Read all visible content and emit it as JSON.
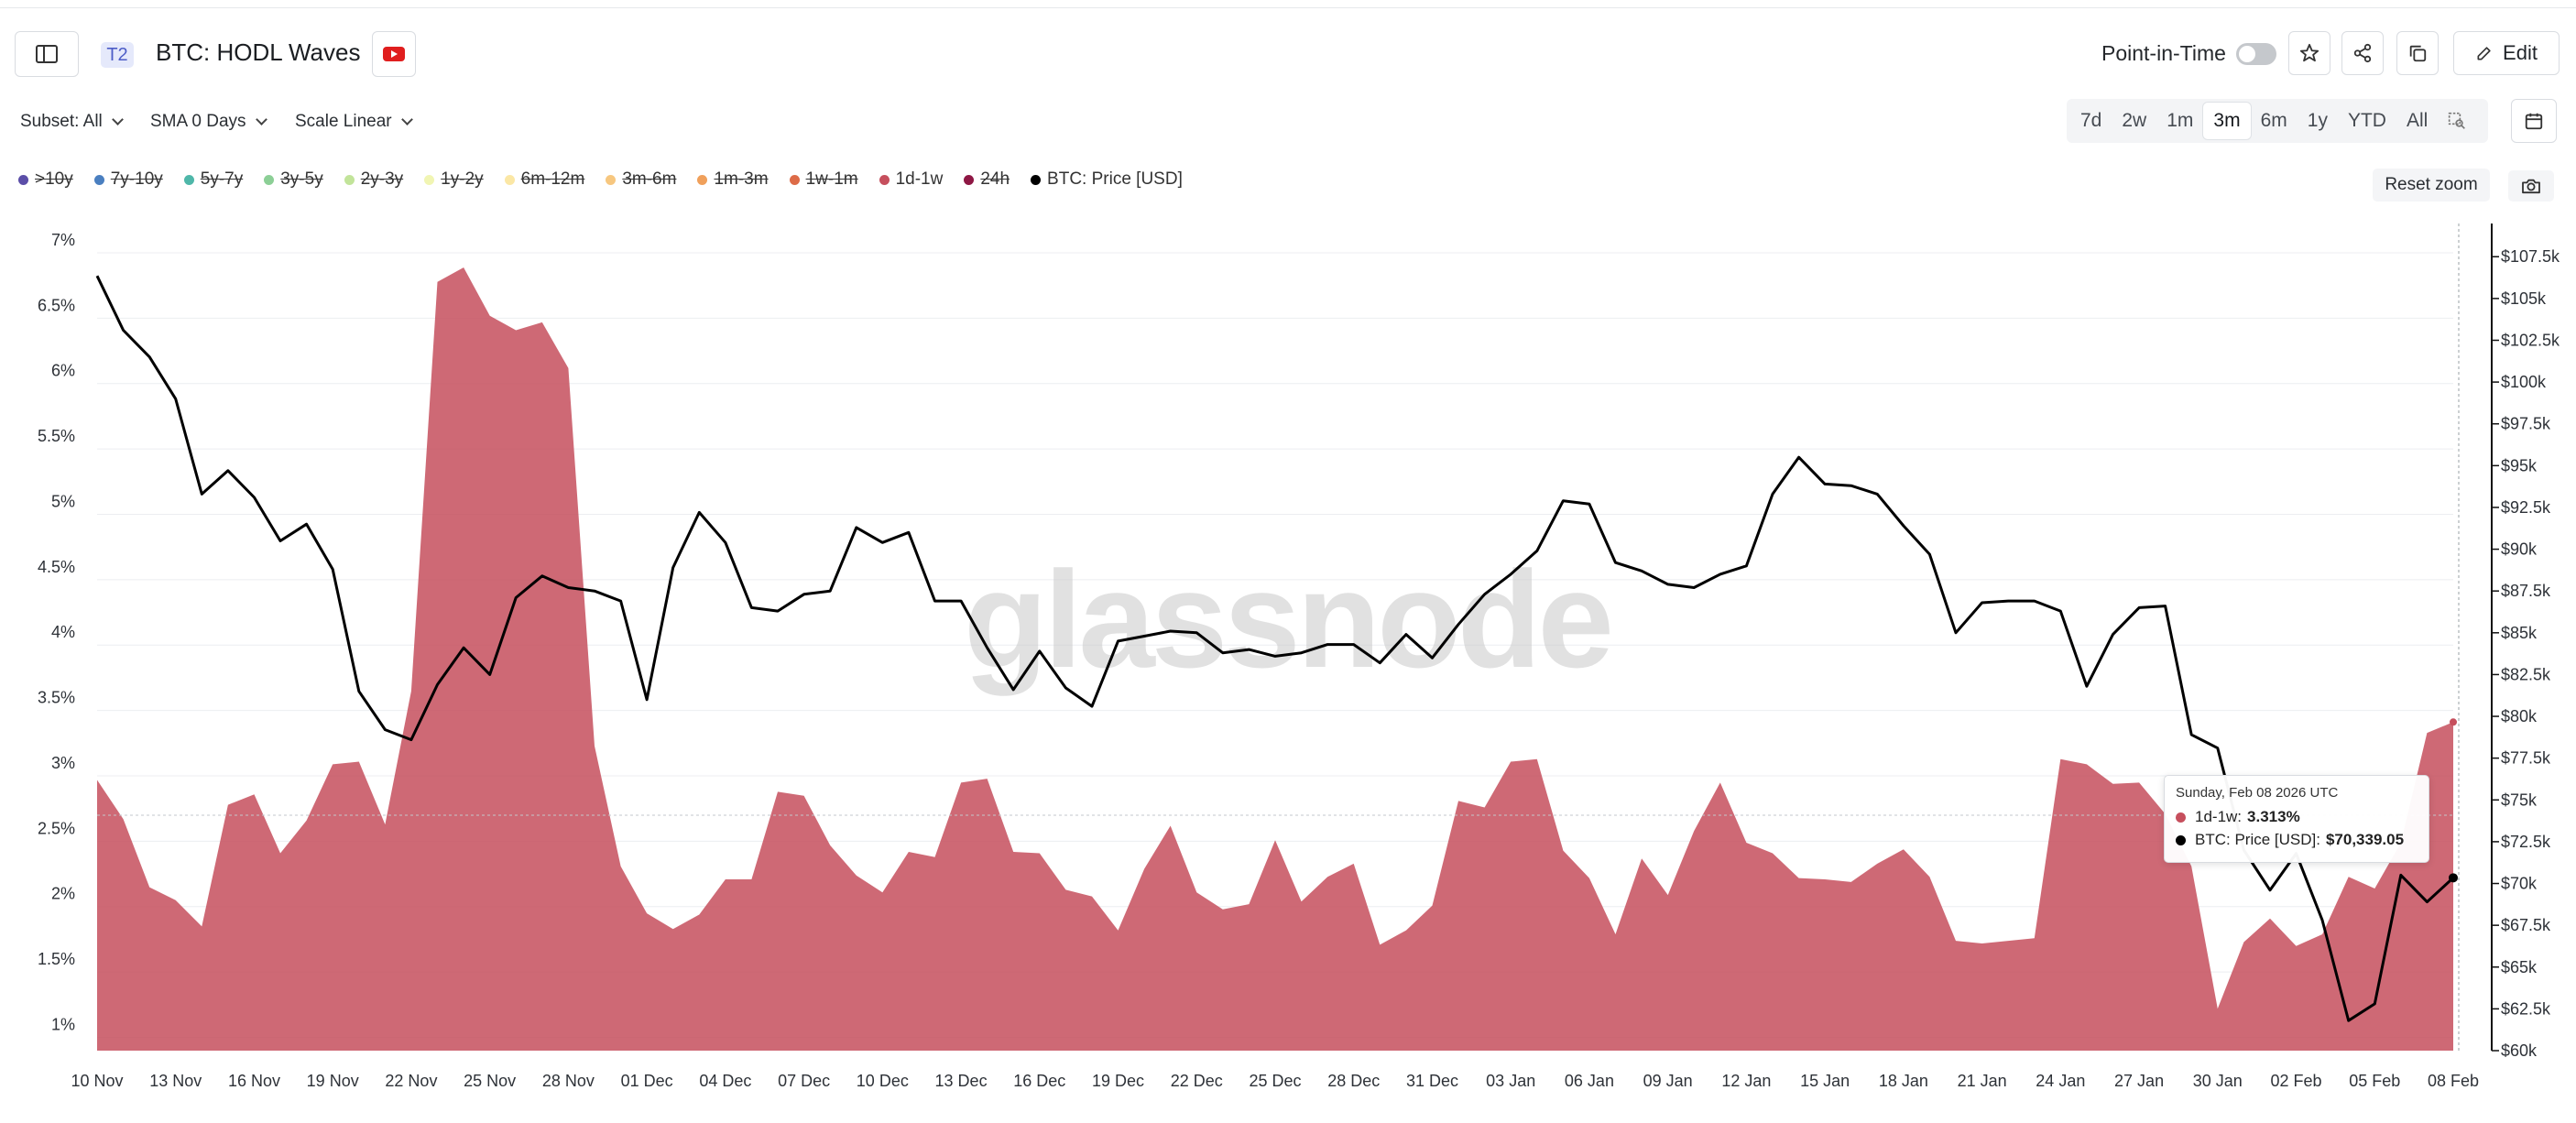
{
  "header": {
    "badge": "T2",
    "title": "BTC: HODL Waves",
    "point_in_time_label": "Point-in-Time",
    "edit_label": "Edit"
  },
  "controls": {
    "subset_label": "Subset: All",
    "sma_label": "SMA 0 Days",
    "scale_label": "Scale Linear",
    "ranges": [
      "7d",
      "2w",
      "1m",
      "3m",
      "6m",
      "1y",
      "YTD",
      "All"
    ],
    "active_range": "3m",
    "reset_zoom_label": "Reset zoom"
  },
  "legend": [
    {
      "label": ">10y",
      "color": "#5b4ea8",
      "active": false
    },
    {
      "label": "7y-10y",
      "color": "#4a7fc0",
      "active": false
    },
    {
      "label": "5y-7y",
      "color": "#4fb7a9",
      "active": false
    },
    {
      "label": "3y-5y",
      "color": "#8ccf96",
      "active": false
    },
    {
      "label": "2y-3y",
      "color": "#c2e49a",
      "active": false
    },
    {
      "label": "1y-2y",
      "color": "#f1f5b3",
      "active": false
    },
    {
      "label": "6m-12m",
      "color": "#fbe7a5",
      "active": false
    },
    {
      "label": "3m-6m",
      "color": "#f7c77f",
      "active": false
    },
    {
      "label": "1m-3m",
      "color": "#f0a05b",
      "active": false
    },
    {
      "label": "1w-1m",
      "color": "#dd6b47",
      "active": false
    },
    {
      "label": "1d-1w",
      "color": "#c64f5d",
      "active": true
    },
    {
      "label": "24h",
      "color": "#8e1744",
      "active": false
    },
    {
      "label": "BTC: Price [USD]",
      "color": "#000000",
      "active": true
    }
  ],
  "tooltip": {
    "date": "Sunday, Feb 08 2026 UTC",
    "rows": [
      {
        "label": "1d-1w:",
        "value": "3.313%",
        "color": "#c64f5d"
      },
      {
        "label": "BTC: Price [USD]:",
        "value": "$70,339.05",
        "color": "#000000"
      }
    ]
  },
  "watermark": "glassnode",
  "chart_data": {
    "type": "area",
    "x_tick_labels": [
      "10 Nov",
      "13 Nov",
      "16 Nov",
      "19 Nov",
      "22 Nov",
      "25 Nov",
      "28 Nov",
      "01 Dec",
      "04 Dec",
      "07 Dec",
      "10 Dec",
      "13 Dec",
      "16 Dec",
      "19 Dec",
      "22 Dec",
      "25 Dec",
      "28 Dec",
      "31 Dec",
      "03 Jan",
      "06 Jan",
      "09 Jan",
      "12 Jan",
      "15 Jan",
      "18 Jan",
      "21 Jan",
      "24 Jan",
      "27 Jan",
      "30 Jan",
      "02 Feb",
      "05 Feb",
      "08 Feb"
    ],
    "y_left_tick_labels": [
      "1%",
      "1.5%",
      "2%",
      "2.5%",
      "3%",
      "3.5%",
      "4%",
      "4.5%",
      "5%",
      "5.5%",
      "6%",
      "6.5%",
      "7%"
    ],
    "y_right_tick_labels": [
      "$60k",
      "$62.5k",
      "$65k",
      "$67.5k",
      "$70k",
      "$72.5k",
      "$75k",
      "$77.5k",
      "$80k",
      "$82.5k",
      "$85k",
      "$87.5k",
      "$90k",
      "$92.5k",
      "$95k",
      "$97.5k",
      "$100k",
      "$102.5k",
      "$105k",
      "$107.5k"
    ],
    "y_left_range": [
      0.8,
      7.0
    ],
    "y_right_range": [
      60000,
      108500
    ],
    "dates": [
      "10 Nov",
      "11 Nov",
      "12 Nov",
      "13 Nov",
      "14 Nov",
      "15 Nov",
      "16 Nov",
      "17 Nov",
      "18 Nov",
      "19 Nov",
      "20 Nov",
      "21 Nov",
      "22 Nov",
      "23 Nov",
      "24 Nov",
      "25 Nov",
      "26 Nov",
      "27 Nov",
      "28 Nov",
      "29 Nov",
      "30 Nov",
      "01 Dec",
      "02 Dec",
      "03 Dec",
      "04 Dec",
      "05 Dec",
      "06 Dec",
      "07 Dec",
      "08 Dec",
      "09 Dec",
      "10 Dec",
      "11 Dec",
      "12 Dec",
      "13 Dec",
      "14 Dec",
      "15 Dec",
      "16 Dec",
      "17 Dec",
      "18 Dec",
      "19 Dec",
      "20 Dec",
      "21 Dec",
      "22 Dec",
      "23 Dec",
      "24 Dec",
      "25 Dec",
      "26 Dec",
      "27 Dec",
      "28 Dec",
      "29 Dec",
      "30 Dec",
      "31 Dec",
      "01 Jan",
      "02 Jan",
      "03 Jan",
      "04 Jan",
      "05 Jan",
      "06 Jan",
      "07 Jan",
      "08 Jan",
      "09 Jan",
      "10 Jan",
      "11 Jan",
      "12 Jan",
      "13 Jan",
      "14 Jan",
      "15 Jan",
      "16 Jan",
      "17 Jan",
      "18 Jan",
      "19 Jan",
      "20 Jan",
      "21 Jan",
      "22 Jan",
      "23 Jan",
      "24 Jan",
      "25 Jan",
      "26 Jan",
      "27 Jan",
      "28 Jan",
      "29 Jan",
      "30 Jan",
      "31 Jan",
      "01 Feb",
      "02 Feb",
      "03 Feb",
      "04 Feb",
      "05 Feb",
      "06 Feb",
      "07 Feb",
      "08 Feb"
    ],
    "series": [
      {
        "name": "1d-1w",
        "color": "#c64f5d",
        "axis": "left",
        "unit": "%",
        "values": [
          2.87,
          2.57,
          2.05,
          1.95,
          1.75,
          2.68,
          2.76,
          2.31,
          2.56,
          2.99,
          3.01,
          2.53,
          3.55,
          6.68,
          6.79,
          6.42,
          6.31,
          6.37,
          6.02,
          3.13,
          2.21,
          1.85,
          1.73,
          1.84,
          2.11,
          2.11,
          2.78,
          2.75,
          2.37,
          2.14,
          2.01,
          2.32,
          2.28,
          2.85,
          2.88,
          2.32,
          2.31,
          2.03,
          1.98,
          1.72,
          2.19,
          2.52,
          2.01,
          1.88,
          1.92,
          2.41,
          1.94,
          2.13,
          2.23,
          1.61,
          1.72,
          1.91,
          2.71,
          2.66,
          3.01,
          3.03,
          2.33,
          2.12,
          1.69,
          2.27,
          1.99,
          2.48,
          2.85,
          2.39,
          2.31,
          2.12,
          2.11,
          2.09,
          2.23,
          2.34,
          2.13,
          1.64,
          1.62,
          1.64,
          1.66,
          3.03,
          2.99,
          2.84,
          2.85,
          2.61,
          2.21,
          1.12,
          1.63,
          1.81,
          1.6,
          1.69,
          2.13,
          2.04,
          2.39,
          3.23,
          3.313
        ]
      },
      {
        "name": "BTC: Price [USD]",
        "color": "#000000",
        "axis": "right",
        "unit": "USD",
        "values": [
          106350,
          103100,
          101500,
          99000,
          93300,
          94700,
          93100,
          90500,
          91500,
          88800,
          81500,
          79200,
          78600,
          81900,
          84100,
          82500,
          87100,
          88400,
          87700,
          87500,
          86900,
          81000,
          88900,
          92200,
          90400,
          86500,
          86300,
          87300,
          87500,
          91300,
          90400,
          91000,
          86900,
          86900,
          84100,
          81600,
          83900,
          81700,
          80600,
          84500,
          84800,
          85100,
          85000,
          83800,
          84000,
          83600,
          83800,
          84300,
          84300,
          83200,
          84900,
          83500,
          85500,
          87300,
          88500,
          89900,
          92900,
          92700,
          89200,
          88700,
          87900,
          87700,
          88500,
          89000,
          93300,
          95500,
          93900,
          93800,
          93300,
          91400,
          89700,
          85000,
          86800,
          86900,
          86900,
          86300,
          81800,
          84900,
          86500,
          86600,
          78900,
          78100,
          72000,
          69600,
          71800,
          67800,
          61800,
          62800,
          70500,
          68900,
          70339.05
        ]
      }
    ]
  }
}
